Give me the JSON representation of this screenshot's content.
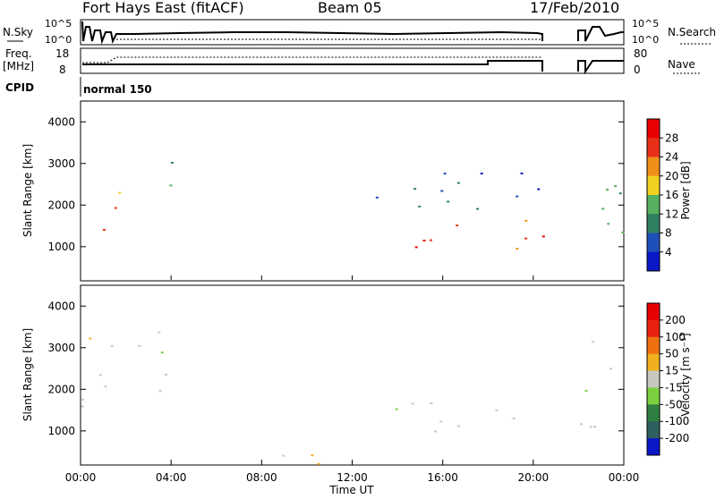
{
  "header": {
    "station": "Fort Hays East (fitACF)",
    "beam": "Beam 05",
    "date": "17/Feb/2010"
  },
  "noise_panel": {
    "left_label": "N.Sky",
    "right_label": "N.Search",
    "left_ticks": [
      "10^5",
      "10^0"
    ],
    "right_ticks": [
      "10^5",
      "10^0"
    ]
  },
  "freq_panel": {
    "left_label_line1": "Freq.",
    "left_label_line2": "[MHz]",
    "right_label": "Nave",
    "left_ticks": [
      "18",
      "8"
    ],
    "right_ticks": [
      "80",
      "0"
    ]
  },
  "cpid_panel": {
    "label": "CPID",
    "value": "normal 150"
  },
  "x_axis": {
    "label": "Time UT",
    "ticks": [
      "00:00",
      "04:00",
      "08:00",
      "12:00",
      "16:00",
      "20:00",
      "00:00"
    ]
  },
  "chart_data": [
    {
      "type": "heatmap",
      "title": "",
      "xlabel": "Time UT",
      "ylabel": "Slant Range [km]",
      "xlim": [
        0,
        24
      ],
      "ylim": [
        180,
        4500
      ],
      "yticks": [
        "1000",
        "2000",
        "3000",
        "4000"
      ],
      "colorbar": {
        "label": "Power [dB]",
        "ticks": [
          "28",
          "24",
          "20",
          "16",
          "12",
          "8",
          "4"
        ],
        "range": [
          0,
          30
        ],
        "colors": [
          "#0b18c8",
          "#1f4fb8",
          "#2f8060",
          "#55b060",
          "#f0d020",
          "#f09018",
          "#e83018",
          "#e80000"
        ]
      },
      "features": [
        {
          "t_start": 0.0,
          "t_end": 1.5,
          "range_low": 1000,
          "range_high": 2400,
          "power": 24
        },
        {
          "t_start": 1.5,
          "t_end": 2.5,
          "range_low": 1700,
          "range_high": 2400,
          "power": 16
        },
        {
          "t_start": 2.5,
          "t_end": 4.3,
          "range_low": 2300,
          "range_high": 3300,
          "power": 12
        },
        {
          "t_start": 13.0,
          "t_end": 20.6,
          "range_low": 800,
          "range_high": 1800,
          "power": 26
        },
        {
          "t_start": 13.0,
          "t_end": 20.6,
          "range_low": 1800,
          "range_high": 3200,
          "power": 6
        },
        {
          "t_start": 21.8,
          "t_end": 24.0,
          "range_low": 900,
          "range_high": 3200,
          "power": 14
        }
      ]
    },
    {
      "type": "heatmap",
      "title": "",
      "xlabel": "Time UT",
      "ylabel": "Slant Range [km]",
      "xlim": [
        0,
        24
      ],
      "ylim": [
        180,
        4500
      ],
      "yticks": [
        "1000",
        "2000",
        "3000",
        "4000"
      ],
      "colorbar": {
        "label": "Velocity [m s⁻¹]",
        "ticks": [
          "200",
          "100",
          "50",
          "15",
          "-15",
          "-50",
          "-100",
          "-200"
        ],
        "range": [
          -250,
          250
        ],
        "colors": [
          "#0b18c8",
          "#2f6060",
          "#2f8040",
          "#7cd040",
          "#c8c8c0",
          "#f0b020",
          "#f07010",
          "#e82010",
          "#e80000"
        ]
      },
      "features": [
        {
          "t_start": 0.0,
          "t_end": 4.3,
          "range_low": 1000,
          "range_high": 3400,
          "velocity": 0
        },
        {
          "t_start": 5.0,
          "t_end": 13.0,
          "range_low": 180,
          "range_high": 550,
          "velocity": -60
        },
        {
          "t_start": 13.0,
          "t_end": 20.6,
          "range_low": 1000,
          "range_high": 2000,
          "velocity": 0
        },
        {
          "t_start": 21.8,
          "t_end": 24.0,
          "range_low": 900,
          "range_high": 3200,
          "velocity": 0
        }
      ]
    }
  ]
}
